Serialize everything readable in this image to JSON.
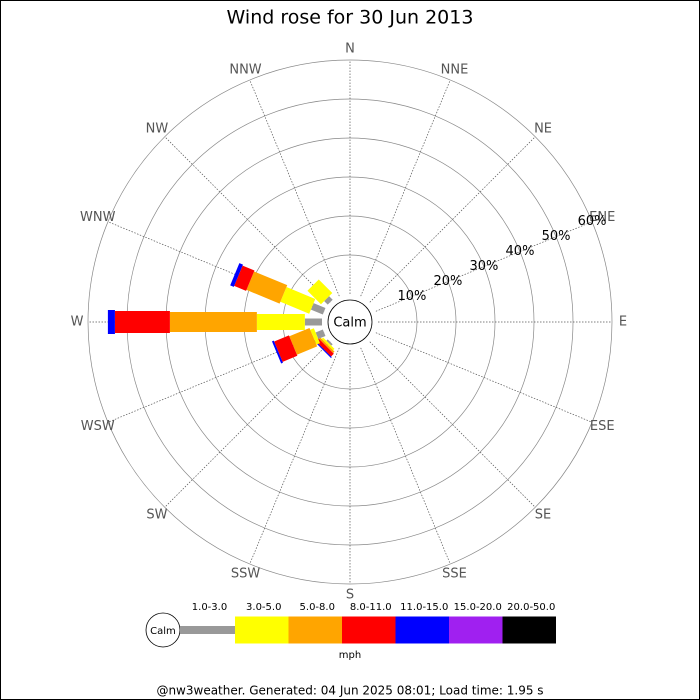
{
  "chart_data": {
    "type": "wind_rose",
    "title": "Wind rose for 30 Jun 2013",
    "directions": [
      "N",
      "NNE",
      "NE",
      "ENE",
      "E",
      "ESE",
      "SE",
      "SSE",
      "S",
      "SSW",
      "SW",
      "WSW",
      "W",
      "WNW",
      "NW",
      "NNW"
    ],
    "rlim": [
      0,
      60
    ],
    "rticks": [
      {
        "value": 10,
        "label": "10%"
      },
      {
        "value": 20,
        "label": "20%"
      },
      {
        "value": 30,
        "label": "30%"
      },
      {
        "value": 40,
        "label": "40%"
      },
      {
        "value": 50,
        "label": "50%"
      },
      {
        "value": 60,
        "label": "60%"
      }
    ],
    "center_label": "Calm",
    "unit": "mph",
    "series": [
      {
        "name": "1.0-3.0",
        "color": "#999999",
        "values": [
          0,
          0,
          0,
          0,
          0,
          0,
          0,
          0,
          0,
          0,
          0.5,
          2,
          4.4,
          3.3,
          1.3,
          0
        ]
      },
      {
        "name": "3.0-5.0",
        "color": "#ffff00",
        "values": [
          0,
          0,
          0,
          0,
          0,
          0,
          0,
          0,
          0,
          0,
          0.5,
          1,
          12.3,
          8,
          4.9,
          0
        ]
      },
      {
        "name": "5.0-8.0",
        "color": "#ffa500",
        "values": [
          0,
          0,
          0,
          0,
          0,
          0,
          0,
          0,
          0,
          0,
          0.5,
          5.6,
          22.3,
          9.2,
          0,
          0
        ]
      },
      {
        "name": "8.0-11.0",
        "color": "#ff0000",
        "values": [
          0,
          0,
          0,
          0,
          0,
          0,
          0,
          0,
          0,
          0,
          1,
          4.1,
          14.1,
          3.3,
          0,
          0
        ]
      },
      {
        "name": "11.0-15.0",
        "color": "#0000ff",
        "values": [
          0,
          0,
          0,
          0,
          0,
          0,
          0,
          0,
          0,
          0,
          0.3,
          0.5,
          1.8,
          1,
          0,
          0
        ]
      },
      {
        "name": "15.0-20.0",
        "color": "#a020f0",
        "values": [
          0,
          0,
          0,
          0,
          0,
          0,
          0,
          0,
          0,
          0,
          0,
          0,
          0,
          0,
          0,
          0
        ]
      },
      {
        "name": "20.0-50.0",
        "color": "#000000",
        "values": [
          0,
          0,
          0,
          0,
          0,
          0,
          0,
          0,
          0,
          0,
          0,
          0,
          0,
          0,
          0,
          0
        ]
      }
    ],
    "footer": "@nw3weather. Generated: 04 Jun 2025 08:01; Load time: 1.95 s"
  }
}
